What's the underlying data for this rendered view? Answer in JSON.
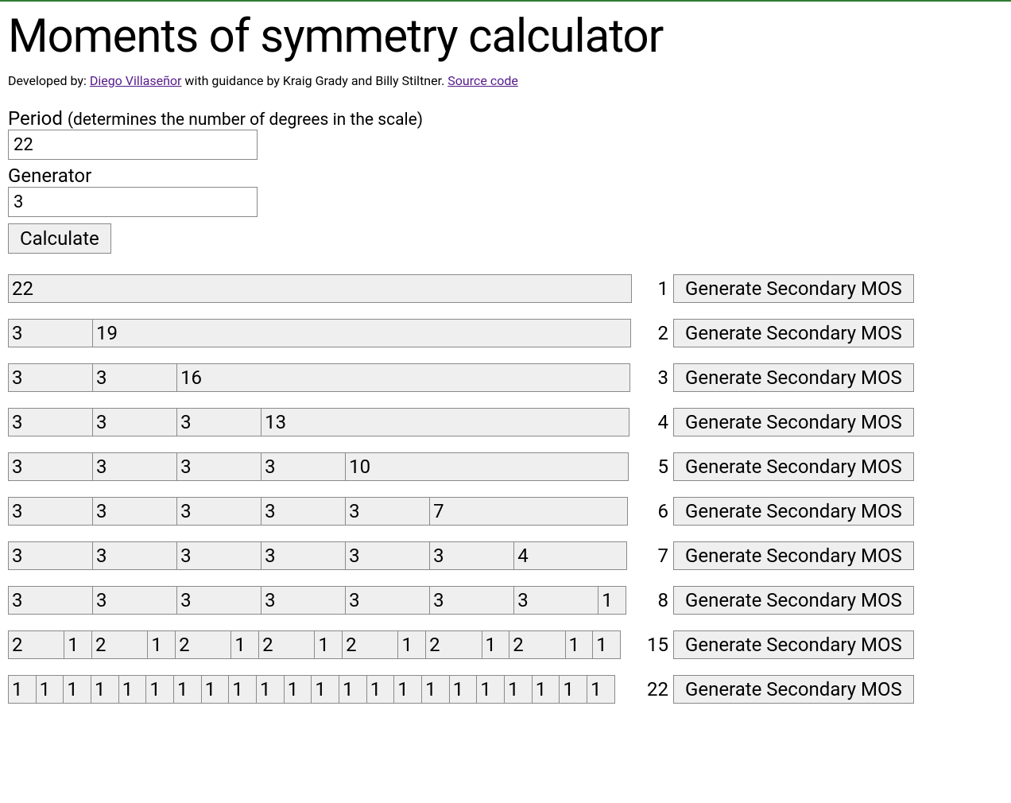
{
  "title": "Moments of symmetry calculator",
  "byline_prefix": "Developed by: ",
  "author_link_text": "Diego Villaseñor",
  "byline_middle": " with guidance by Kraig Grady and Billy Stiltner. ",
  "source_link_text": "Source code",
  "period_label": "Period ",
  "period_hint": "(determines the number of degrees in the scale)",
  "period_value": "22",
  "generator_label": "Generator",
  "generator_value": "3",
  "calculate_label": "Calculate",
  "generate_button_label": "Generate Secondary MOS",
  "total_units": 22,
  "segment_bg": "#efefef",
  "segment_border": "#8a8a8a",
  "rows": [
    {
      "count": "1",
      "segments": [
        22
      ]
    },
    {
      "count": "2",
      "segments": [
        3,
        19
      ]
    },
    {
      "count": "3",
      "segments": [
        3,
        3,
        16
      ]
    },
    {
      "count": "4",
      "segments": [
        3,
        3,
        3,
        13
      ]
    },
    {
      "count": "5",
      "segments": [
        3,
        3,
        3,
        3,
        10
      ]
    },
    {
      "count": "6",
      "segments": [
        3,
        3,
        3,
        3,
        3,
        7
      ]
    },
    {
      "count": "7",
      "segments": [
        3,
        3,
        3,
        3,
        3,
        3,
        4
      ]
    },
    {
      "count": "8",
      "segments": [
        3,
        3,
        3,
        3,
        3,
        3,
        3,
        1
      ]
    },
    {
      "count": "15",
      "segments": [
        2,
        1,
        2,
        1,
        2,
        1,
        2,
        1,
        2,
        1,
        2,
        1,
        2,
        1,
        1
      ]
    },
    {
      "count": "22",
      "segments": [
        1,
        1,
        1,
        1,
        1,
        1,
        1,
        1,
        1,
        1,
        1,
        1,
        1,
        1,
        1,
        1,
        1,
        1,
        1,
        1,
        1,
        1
      ]
    }
  ]
}
